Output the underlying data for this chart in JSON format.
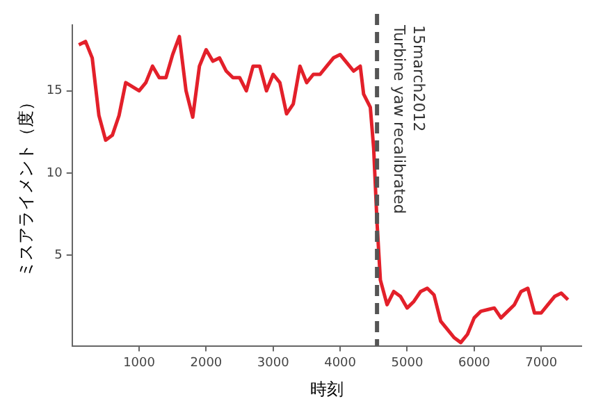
{
  "chart_data": {
    "type": "line",
    "xlabel": "時刻",
    "ylabel": "ミスアライメント（度）",
    "xlim": [
      0,
      7600
    ],
    "ylim": [
      -0.5,
      19
    ],
    "xticks": [
      1000,
      2000,
      3000,
      4000,
      5000,
      6000,
      7000
    ],
    "yticks": [
      5,
      10,
      15
    ],
    "grid": false,
    "legend": false,
    "marker": "none",
    "line_style": "solid",
    "ref_lines": [
      {
        "axis": "x",
        "value": 4550,
        "label": "15march2012\nTurbine yaw recalibrated",
        "color": "#555555",
        "line_style": "dashed"
      }
    ],
    "series": [
      {
        "color": "#e3202a",
        "x": [
          100,
          200,
          300,
          400,
          500,
          600,
          700,
          800,
          1000,
          1100,
          1200,
          1300,
          1400,
          1500,
          1600,
          1700,
          1800,
          1900,
          2000,
          2100,
          2200,
          2300,
          2400,
          2500,
          2600,
          2700,
          2800,
          2900,
          3000,
          3100,
          3200,
          3300,
          3400,
          3500,
          3600,
          3700,
          3800,
          3900,
          4000,
          4100,
          4200,
          4300,
          4350,
          4450,
          4500,
          4550,
          4600,
          4700,
          4800,
          4900,
          5000,
          5100,
          5200,
          5300,
          5400,
          5500,
          5600,
          5700,
          5800,
          5900,
          6000,
          6100,
          6200,
          6300,
          6400,
          6500,
          6600,
          6700,
          6800,
          6900,
          7000,
          7100,
          7200,
          7300,
          7400
        ],
        "values": [
          17.8,
          18,
          17,
          13.5,
          12,
          12.3,
          13.5,
          15.5,
          15,
          15.5,
          16.5,
          15.8,
          15.8,
          17.2,
          18.3,
          15,
          13.4,
          16.5,
          17.5,
          16.8,
          17,
          16.2,
          15.8,
          15.8,
          15,
          16.5,
          16.5,
          15,
          16,
          15.5,
          13.6,
          14.2,
          16.5,
          15.5,
          16,
          16,
          16.5,
          17,
          17.2,
          16.7,
          16.2,
          16.5,
          14.8,
          14,
          11.5,
          7,
          3.5,
          2,
          2.8,
          2.5,
          1.8,
          2.2,
          2.8,
          3,
          2.6,
          1,
          0.5,
          0,
          -0.3,
          0.2,
          1.2,
          1.6,
          1.7,
          1.8,
          1.2,
          1.6,
          2,
          2.8,
          3,
          1.5,
          1.5,
          2,
          2.5,
          2.7,
          2.3
        ]
      }
    ]
  }
}
